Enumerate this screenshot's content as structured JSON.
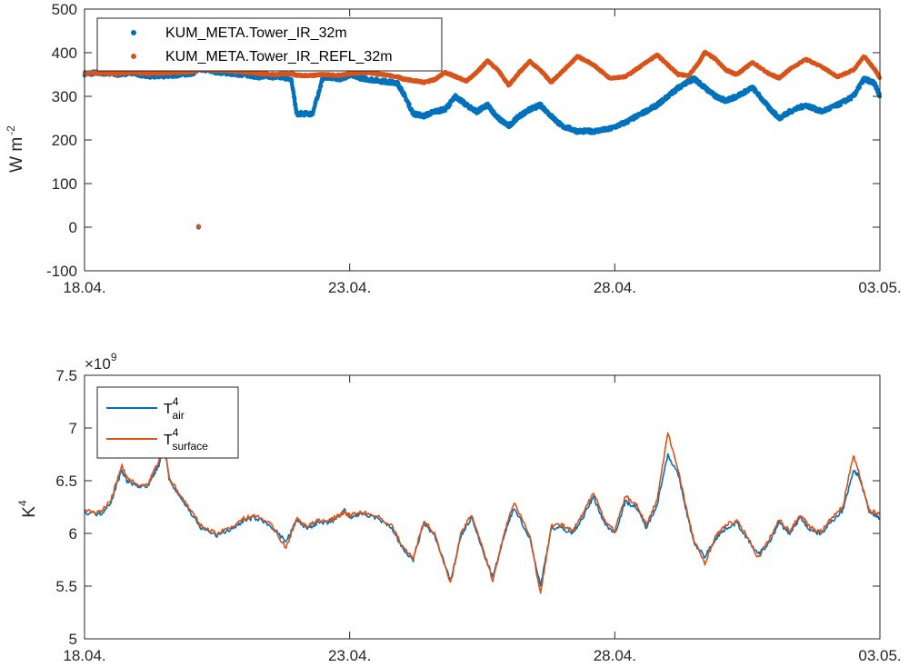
{
  "colors": {
    "blue": "#0072BD",
    "orange": "#D95319",
    "axis": "#262626"
  },
  "chart_data": [
    {
      "type": "scatter",
      "xlabel": "",
      "ylabel": "W m",
      "ylabel_exp": "-2",
      "ylim": [
        -100,
        500
      ],
      "yticks": [
        -100,
        0,
        100,
        200,
        300,
        400,
        500
      ],
      "xlim": [
        0,
        15
      ],
      "xticks": [
        0,
        5,
        10,
        15
      ],
      "xticklabels": [
        "18.04.",
        "23.04.",
        "28.04.",
        "03.05."
      ],
      "legend_position": "top-left",
      "series": [
        {
          "name": "KUM_META.Tower_IR_32m",
          "color": "#0072BD",
          "points": [
            [
              0,
              352
            ],
            [
              0.3,
              354
            ],
            [
              0.6,
              350
            ],
            [
              0.9,
              355
            ],
            [
              1.2,
              345
            ],
            [
              1.6,
              348
            ],
            [
              2.0,
              352
            ],
            [
              2.2,
              362
            ],
            [
              2.5,
              356
            ],
            [
              2.8,
              352
            ],
            [
              3.0,
              350
            ],
            [
              3.3,
              345
            ],
            [
              3.6,
              345
            ],
            [
              3.9,
              340
            ],
            [
              4.0,
              260
            ],
            [
              4.3,
              260
            ],
            [
              4.5,
              345
            ],
            [
              4.8,
              340
            ],
            [
              5.0,
              348
            ],
            [
              5.3,
              340
            ],
            [
              5.6,
              335
            ],
            [
              5.9,
              330
            ],
            [
              6.0,
              310
            ],
            [
              6.2,
              260
            ],
            [
              6.4,
              255
            ],
            [
              6.6,
              265
            ],
            [
              6.8,
              270
            ],
            [
              7.0,
              300
            ],
            [
              7.2,
              280
            ],
            [
              7.4,
              265
            ],
            [
              7.6,
              280
            ],
            [
              7.8,
              250
            ],
            [
              8.0,
              232
            ],
            [
              8.2,
              255
            ],
            [
              8.4,
              270
            ],
            [
              8.6,
              280
            ],
            [
              8.8,
              255
            ],
            [
              9.0,
              232
            ],
            [
              9.3,
              220
            ],
            [
              9.6,
              220
            ],
            [
              9.9,
              225
            ],
            [
              10.2,
              240
            ],
            [
              10.5,
              260
            ],
            [
              10.8,
              280
            ],
            [
              11.0,
              300
            ],
            [
              11.2,
              320
            ],
            [
              11.4,
              335
            ],
            [
              11.5,
              340
            ],
            [
              11.7,
              320
            ],
            [
              11.9,
              300
            ],
            [
              12.1,
              290
            ],
            [
              12.3,
              300
            ],
            [
              12.6,
              320
            ],
            [
              12.9,
              275
            ],
            [
              13.1,
              250
            ],
            [
              13.3,
              265
            ],
            [
              13.6,
              280
            ],
            [
              13.9,
              265
            ],
            [
              14.2,
              280
            ],
            [
              14.5,
              300
            ],
            [
              14.7,
              340
            ],
            [
              14.9,
              330
            ],
            [
              15.0,
              300
            ]
          ],
          "outliers": [
            [
              2.15,
              0
            ]
          ]
        },
        {
          "name": "KUM_META.Tower_IR_REFL_32m",
          "color": "#D95319",
          "points": [
            [
              0,
              352
            ],
            [
              0.3,
              354
            ],
            [
              0.6,
              352
            ],
            [
              0.9,
              355
            ],
            [
              1.2,
              352
            ],
            [
              1.6,
              354
            ],
            [
              2.0,
              356
            ],
            [
              2.2,
              362
            ],
            [
              2.5,
              360
            ],
            [
              2.8,
              358
            ],
            [
              3.0,
              356
            ],
            [
              3.3,
              352
            ],
            [
              3.6,
              350
            ],
            [
              3.9,
              352
            ],
            [
              4.0,
              348
            ],
            [
              4.3,
              348
            ],
            [
              4.5,
              350
            ],
            [
              4.8,
              348
            ],
            [
              5.0,
              352
            ],
            [
              5.3,
              355
            ],
            [
              5.6,
              350
            ],
            [
              5.9,
              345
            ],
            [
              6.0,
              340
            ],
            [
              6.2,
              336
            ],
            [
              6.4,
              332
            ],
            [
              6.6,
              338
            ],
            [
              6.8,
              355
            ],
            [
              7.0,
              345
            ],
            [
              7.2,
              335
            ],
            [
              7.4,
              355
            ],
            [
              7.6,
              382
            ],
            [
              7.8,
              360
            ],
            [
              8.0,
              325
            ],
            [
              8.2,
              355
            ],
            [
              8.4,
              380
            ],
            [
              8.6,
              360
            ],
            [
              8.8,
              332
            ],
            [
              9.0,
              355
            ],
            [
              9.3,
              392
            ],
            [
              9.6,
              372
            ],
            [
              9.9,
              342
            ],
            [
              10.2,
              345
            ],
            [
              10.5,
              370
            ],
            [
              10.8,
              395
            ],
            [
              11.0,
              372
            ],
            [
              11.2,
              350
            ],
            [
              11.4,
              348
            ],
            [
              11.6,
              380
            ],
            [
              11.7,
              402
            ],
            [
              11.9,
              385
            ],
            [
              12.1,
              360
            ],
            [
              12.3,
              350
            ],
            [
              12.6,
              378
            ],
            [
              12.9,
              352
            ],
            [
              13.1,
              342
            ],
            [
              13.3,
              362
            ],
            [
              13.6,
              385
            ],
            [
              13.9,
              368
            ],
            [
              14.2,
              345
            ],
            [
              14.5,
              360
            ],
            [
              14.7,
              392
            ],
            [
              14.9,
              362
            ],
            [
              15.0,
              342
            ]
          ],
          "outliers": [
            [
              2.15,
              2
            ]
          ]
        }
      ]
    },
    {
      "type": "line",
      "xlabel": "",
      "ylabel": "K",
      "ylabel_exp": "4",
      "ylim": [
        5,
        7.5
      ],
      "yticks": [
        5,
        5.5,
        6,
        6.5,
        7,
        7.5
      ],
      "ytick_multiplier": "×10",
      "ytick_multiplier_exp": "9",
      "xlim": [
        0,
        15
      ],
      "xticks": [
        0,
        5,
        10,
        15
      ],
      "xticklabels": [
        "18.04.",
        "23.04.",
        "28.04.",
        "03.05."
      ],
      "legend_position": "top-left",
      "series": [
        {
          "name": "T",
          "name_sup": "4",
          "name_sub": "air",
          "color": "#0072BD",
          "x": [
            0,
            0.3,
            0.5,
            0.7,
            0.8,
            1.0,
            1.2,
            1.3,
            1.4,
            1.5,
            1.6,
            1.8,
            2.0,
            2.2,
            2.5,
            2.8,
            3.0,
            3.2,
            3.5,
            3.8,
            4.0,
            4.2,
            4.4,
            4.6,
            4.8,
            4.9,
            5.0,
            5.2,
            5.5,
            5.8,
            6.0,
            6.2,
            6.4,
            6.6,
            6.9,
            7.1,
            7.3,
            7.5,
            7.7,
            7.9,
            8.1,
            8.4,
            8.6,
            8.8,
            9.0,
            9.2,
            9.4,
            9.6,
            9.8,
            10.0,
            10.2,
            10.4,
            10.6,
            10.8,
            11.0,
            11.2,
            11.4,
            11.5,
            11.7,
            11.9,
            12.1,
            12.3,
            12.5,
            12.7,
            12.9,
            13.1,
            13.3,
            13.5,
            13.7,
            13.9,
            14.1,
            14.3,
            14.5,
            14.6,
            14.8,
            15.0
          ],
          "y": [
            6.2,
            6.18,
            6.3,
            6.6,
            6.5,
            6.45,
            6.45,
            6.55,
            6.65,
            6.85,
            6.5,
            6.35,
            6.2,
            6.05,
            5.98,
            6.05,
            6.12,
            6.15,
            6.08,
            5.92,
            6.12,
            6.05,
            6.1,
            6.1,
            6.15,
            6.22,
            6.15,
            6.18,
            6.15,
            6.05,
            5.85,
            5.75,
            6.1,
            5.98,
            5.55,
            5.98,
            6.15,
            5.85,
            5.58,
            5.95,
            6.25,
            5.95,
            5.5,
            6.05,
            6.05,
            6.0,
            6.15,
            6.35,
            6.1,
            6.0,
            6.3,
            6.25,
            6.05,
            6.28,
            6.75,
            6.55,
            6.1,
            5.9,
            5.78,
            5.95,
            6.05,
            6.1,
            5.95,
            5.8,
            5.9,
            6.1,
            6.0,
            6.15,
            6.02,
            6.0,
            6.12,
            6.22,
            6.6,
            6.55,
            6.2,
            6.15
          ]
        },
        {
          "name": "T",
          "name_sup": "4",
          "name_sub": "surface",
          "color": "#D95319",
          "x": [
            0,
            0.3,
            0.5,
            0.7,
            0.8,
            1.0,
            1.2,
            1.3,
            1.4,
            1.5,
            1.6,
            1.8,
            2.0,
            2.2,
            2.5,
            2.8,
            3.0,
            3.2,
            3.5,
            3.8,
            4.0,
            4.2,
            4.4,
            4.6,
            4.8,
            4.9,
            5.0,
            5.2,
            5.5,
            5.8,
            6.0,
            6.2,
            6.4,
            6.6,
            6.9,
            7.1,
            7.3,
            7.5,
            7.7,
            7.9,
            8.1,
            8.4,
            8.6,
            8.8,
            9.0,
            9.2,
            9.4,
            9.6,
            9.8,
            10.0,
            10.2,
            10.4,
            10.6,
            10.8,
            11.0,
            11.2,
            11.4,
            11.5,
            11.7,
            11.9,
            12.1,
            12.3,
            12.5,
            12.7,
            12.9,
            13.1,
            13.3,
            13.5,
            13.7,
            13.9,
            14.1,
            14.3,
            14.5,
            14.6,
            14.8,
            15.0
          ],
          "y": [
            6.22,
            6.2,
            6.32,
            6.65,
            6.52,
            6.46,
            6.46,
            6.58,
            6.68,
            6.88,
            6.52,
            6.37,
            6.22,
            6.07,
            6.0,
            6.07,
            6.14,
            6.17,
            6.1,
            5.86,
            6.14,
            6.07,
            6.12,
            6.12,
            6.17,
            6.2,
            6.17,
            6.2,
            6.17,
            6.07,
            5.87,
            5.77,
            6.12,
            6.0,
            5.52,
            6.0,
            6.18,
            5.88,
            5.55,
            5.98,
            6.3,
            5.98,
            5.42,
            6.08,
            6.08,
            6.02,
            6.18,
            6.4,
            6.13,
            6.02,
            6.35,
            6.28,
            6.08,
            6.32,
            6.95,
            6.6,
            6.12,
            5.92,
            5.72,
            5.97,
            6.08,
            6.12,
            5.97,
            5.77,
            5.93,
            6.13,
            6.02,
            6.18,
            6.05,
            6.02,
            6.15,
            6.25,
            6.75,
            6.58,
            6.22,
            6.18
          ]
        }
      ]
    }
  ]
}
